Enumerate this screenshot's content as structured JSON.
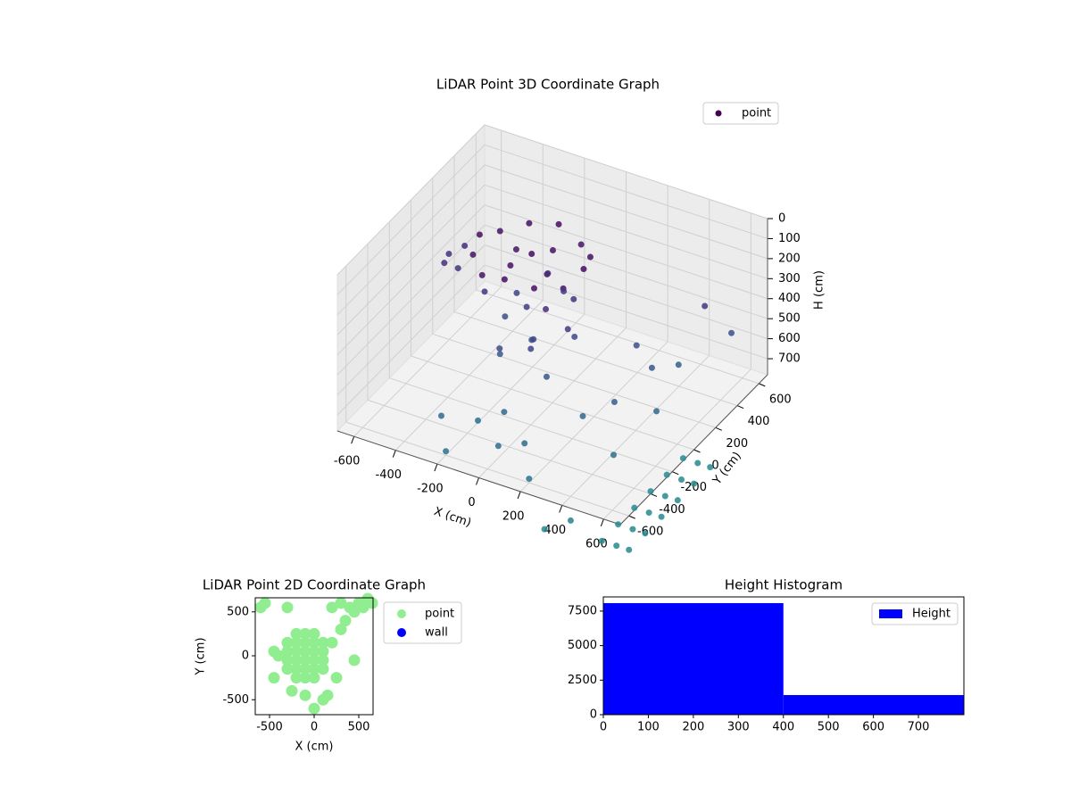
{
  "chart_data": [
    {
      "type": "scatter3d",
      "title": "LiDAR Point 3D Coordinate Graph",
      "x_label": "X (cm)",
      "y_label": "Y (cm)",
      "z_label": "H (cm)",
      "xlim": [
        -680,
        680
      ],
      "ylim": [
        -680,
        680
      ],
      "zlim": [
        780,
        0
      ],
      "xticks": [
        -600,
        -400,
        -200,
        0,
        200,
        400,
        600
      ],
      "yticks": [
        -600,
        -400,
        -200,
        0,
        200,
        400,
        600
      ],
      "zticks": [
        0,
        100,
        200,
        300,
        400,
        500,
        600,
        700
      ],
      "colormap": "viridis",
      "color_range": [
        0,
        2000
      ],
      "legend": "upper right",
      "grid": true,
      "series": [
        {
          "name": "point",
          "color": "#440154",
          "x": [
            150,
            117,
            25,
            -100,
            -225,
            -317,
            -350,
            -317,
            -225,
            -100,
            25,
            117,
            -100,
            -50,
            -150,
            0,
            -200,
            -100,
            50,
            100,
            0,
            -150,
            -300,
            -250,
            -100,
            50,
            -200,
            80,
            -50,
            -280,
            -150,
            20,
            -60,
            -500,
            -550,
            -480,
            -520,
            300,
            400,
            450,
            350,
            500,
            250,
            -150,
            -50,
            0,
            100,
            -300,
            200,
            -200,
            550,
            600,
            450,
            550,
            550,
            550,
            550,
            550,
            550,
            620,
            620,
            620,
            620,
            620,
            620,
            680,
            680,
            680,
            680,
            680,
            680,
            400,
            300
          ],
          "y": [
            0,
            125,
            217,
            250,
            217,
            125,
            0,
            -125,
            -217,
            -250,
            -217,
            -125,
            0,
            100,
            -100,
            -50,
            50,
            150,
            100,
            -50,
            -200,
            -200,
            -50,
            150,
            0,
            -150,
            -100,
            50,
            200,
            100,
            50,
            -100,
            -60,
            150,
            100,
            50,
            0,
            200,
            150,
            300,
            -100,
            0,
            -200,
            -400,
            -350,
            -500,
            -450,
            -450,
            -600,
            -600,
            350,
            500,
            -300,
            -600,
            -450,
            -300,
            -150,
            0,
            150,
            -600,
            -450,
            -300,
            -150,
            0,
            150,
            -600,
            -450,
            -300,
            -150,
            0,
            150,
            -600,
            -650
          ],
          "h": [
            60,
            80,
            100,
            60,
            80,
            100,
            60,
            80,
            100,
            60,
            80,
            100,
            70,
            90,
            90,
            110,
            110,
            250,
            300,
            350,
            400,
            450,
            300,
            400,
            500,
            550,
            550,
            450,
            350,
            500,
            380,
            250,
            450,
            250,
            280,
            300,
            260,
            500,
            550,
            600,
            600,
            650,
            650,
            700,
            650,
            720,
            700,
            700,
            760,
            760,
            300,
            500,
            720,
            950,
            950,
            950,
            950,
            950,
            950,
            950,
            950,
            950,
            950,
            950,
            950,
            950,
            950,
            950,
            950,
            950,
            950,
            900,
            950
          ]
        }
      ]
    },
    {
      "type": "scatter",
      "title": "LiDAR Point 2D Coordinate Graph",
      "x_label": "X (cm)",
      "y_label": "Y (cm)",
      "xlim": [
        -660,
        660
      ],
      "ylim": [
        -670,
        660
      ],
      "xticks": [
        -500,
        0,
        500
      ],
      "yticks": [
        -500,
        0,
        500
      ],
      "legend": "outside upper right",
      "series": [
        {
          "name": "point",
          "color": "#90ee90",
          "x": [
            -300,
            -300,
            -300,
            -300,
            -200,
            -200,
            -200,
            -200,
            -200,
            -200,
            -100,
            -100,
            -100,
            -100,
            -100,
            -100,
            0,
            0,
            0,
            0,
            0,
            0,
            100,
            100,
            100,
            100,
            -550,
            -600,
            -300,
            -450,
            -250,
            -100,
            0,
            100,
            150,
            250,
            450,
            200,
            300,
            350,
            200,
            400,
            500,
            600,
            550,
            650,
            450,
            300,
            -450,
            -400
          ],
          "y": [
            -150,
            -50,
            50,
            150,
            -250,
            -150,
            -50,
            50,
            150,
            250,
            -250,
            -150,
            -50,
            50,
            150,
            250,
            -250,
            -150,
            -50,
            50,
            150,
            250,
            -150,
            -50,
            50,
            150,
            600,
            550,
            550,
            -250,
            -400,
            -450,
            -600,
            -500,
            -450,
            -250,
            -50,
            150,
            300,
            400,
            550,
            550,
            600,
            650,
            550,
            600,
            500,
            600,
            50,
            0
          ]
        },
        {
          "name": "wall",
          "color": "#0000ff",
          "x": [],
          "y": []
        }
      ]
    },
    {
      "type": "histogram",
      "title": "Height Histogram",
      "bins": [
        0,
        400,
        801
      ],
      "xlim": [
        0,
        801
      ],
      "ylim": [
        0,
        8530
      ],
      "xticks": [
        0,
        100,
        200,
        300,
        400,
        500,
        600,
        700
      ],
      "yticks": [
        0,
        2500,
        5000,
        7500
      ],
      "legend": "upper right",
      "series": [
        {
          "name": "Height",
          "color": "#0000ff",
          "values": [
            8080,
            1420
          ]
        }
      ]
    }
  ]
}
